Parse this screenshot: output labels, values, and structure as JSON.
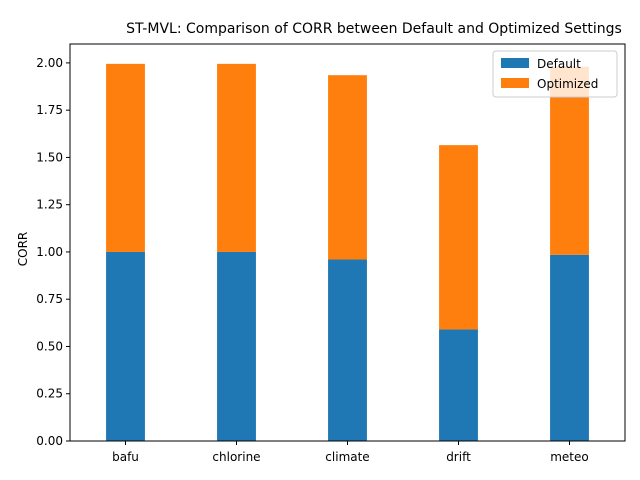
{
  "chart_data": {
    "type": "bar",
    "stacked": true,
    "title": "ST-MVL: Comparison of CORR between Default and Optimized Settings",
    "xlabel": "",
    "ylabel": "CORR",
    "categories": [
      "bafu",
      "chlorine",
      "climate",
      "drift",
      "meteo"
    ],
    "series": [
      {
        "name": "Default",
        "color": "#1f77b4",
        "values": [
          1.0,
          1.0,
          0.96,
          0.59,
          0.985
        ]
      },
      {
        "name": "Optimized",
        "color": "#ff7f0e",
        "values": [
          0.995,
          0.995,
          0.975,
          0.975,
          0.995
        ]
      }
    ],
    "ylim": [
      0,
      2.1
    ],
    "yticks": [
      "0.00",
      "0.25",
      "0.50",
      "0.75",
      "1.00",
      "1.25",
      "1.50",
      "1.75",
      "2.00"
    ],
    "legend_position": "top-right",
    "grid": false
  }
}
